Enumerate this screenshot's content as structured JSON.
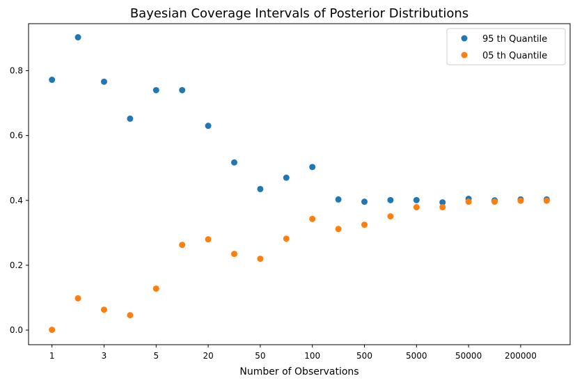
{
  "chart_data": {
    "type": "scatter",
    "title": "Bayesian Coverage Intervals of Posterior Distributions",
    "xlabel": "Number of Observations",
    "ylabel": "",
    "x_tick_labels": [
      "1",
      "3",
      "5",
      "20",
      "50",
      "100",
      "500",
      "5000",
      "50000",
      "200000"
    ],
    "x_tick_positions": [
      0,
      2,
      4,
      6,
      8,
      10,
      12,
      14,
      16,
      18
    ],
    "y_ticks": [
      "0.0",
      "0.2",
      "0.4",
      "0.6",
      "0.8"
    ],
    "ylim": [
      -0.045,
      0.945
    ],
    "xlim": [
      -0.9,
      19.9
    ],
    "grid": false,
    "legend_position": "top-right",
    "x": [
      0,
      1,
      2,
      3,
      4,
      5,
      6,
      7,
      8,
      9,
      10,
      11,
      12,
      13,
      14,
      15,
      16,
      17,
      18,
      19
    ],
    "series": [
      {
        "name": "95 th Quantile",
        "color": "#1f77b4",
        "values": [
          0.772,
          0.903,
          0.766,
          0.652,
          0.74,
          0.74,
          0.63,
          0.517,
          0.435,
          0.47,
          0.503,
          0.403,
          0.396,
          0.401,
          0.401,
          0.394,
          0.405,
          0.4,
          0.403,
          0.403
        ]
      },
      {
        "name": "05 th Quantile",
        "color": "#ff7f0e",
        "values": [
          0.001,
          0.098,
          0.063,
          0.046,
          0.128,
          0.263,
          0.28,
          0.235,
          0.22,
          0.282,
          0.343,
          0.312,
          0.325,
          0.351,
          0.379,
          0.379,
          0.396,
          0.396,
          0.399,
          0.399
        ]
      }
    ]
  }
}
